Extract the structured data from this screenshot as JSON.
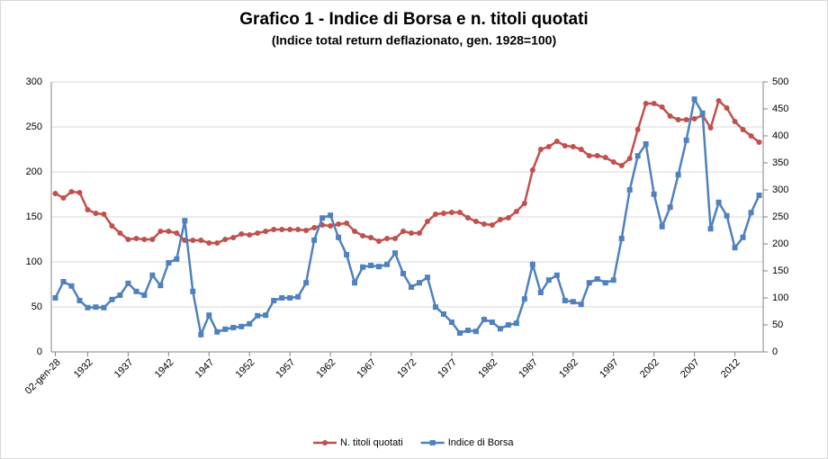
{
  "chart_data": {
    "type": "line",
    "title": "Grafico 1 - Indice di Borsa e n. titoli quotati",
    "subtitle": "(Indice total return deflazionato, gen. 1928=100)",
    "categories": [
      "02-gen-28",
      null,
      null,
      null,
      "1932",
      null,
      null,
      null,
      null,
      "1937",
      null,
      null,
      null,
      null,
      "1942",
      null,
      null,
      null,
      null,
      "1947",
      null,
      null,
      null,
      null,
      "1952",
      null,
      null,
      null,
      null,
      "1957",
      null,
      null,
      null,
      null,
      "1962",
      null,
      null,
      null,
      null,
      "1967",
      null,
      null,
      null,
      null,
      "1972",
      null,
      null,
      null,
      null,
      "1977",
      null,
      null,
      null,
      null,
      "1982",
      null,
      null,
      null,
      null,
      "1987",
      null,
      null,
      null,
      null,
      "1992",
      null,
      null,
      null,
      null,
      "1997",
      null,
      null,
      null,
      null,
      "2002",
      null,
      null,
      null,
      null,
      "2007",
      null,
      null,
      null,
      null,
      "2012",
      null,
      null,
      null
    ],
    "series": [
      {
        "name": "N. titoli quotati",
        "color": "#c0504d",
        "marker": "circle",
        "values": [
          176,
          171,
          178,
          177,
          158,
          154,
          153,
          140,
          132,
          125,
          126,
          125,
          125,
          134,
          134,
          132,
          124,
          124,
          124,
          121,
          121,
          125,
          127,
          131,
          130,
          132,
          134,
          136,
          136,
          136,
          136,
          135,
          138,
          141,
          140,
          142,
          143,
          134,
          129,
          127,
          123,
          126,
          126,
          134,
          132,
          132,
          145,
          153,
          154,
          155,
          155,
          149,
          145,
          142,
          141,
          147,
          149,
          156,
          165,
          202,
          225,
          228,
          234,
          229,
          228,
          225,
          218,
          218,
          216,
          211,
          207,
          215,
          247,
          276,
          276,
          272,
          262,
          258,
          258,
          259,
          263,
          249,
          279,
          271,
          256,
          247,
          240,
          233
        ]
      },
      {
        "name": "Indice di Borsa",
        "color": "#4f81bd",
        "marker": "square",
        "axis": "y2",
        "values": [
          100,
          130,
          122,
          95,
          82,
          83,
          82,
          97,
          105,
          127,
          112,
          105,
          142,
          123,
          165,
          172,
          243,
          112,
          32,
          68,
          37,
          42,
          45,
          47,
          52,
          67,
          68,
          95,
          100,
          100,
          102,
          128,
          207,
          248,
          253,
          212,
          180,
          128,
          157,
          160,
          158,
          162,
          183,
          145,
          120,
          128,
          138,
          83,
          70,
          55,
          35,
          40,
          38,
          60,
          55,
          43,
          50,
          53,
          98,
          162,
          110,
          133,
          142,
          95,
          93,
          88,
          128,
          135,
          128,
          133,
          210,
          300,
          363,
          385,
          292,
          232,
          268,
          328,
          392,
          468,
          442,
          228,
          277,
          252,
          193,
          212,
          258,
          290
        ]
      }
    ],
    "ylim": [
      0,
      300
    ],
    "yticks": [
      0,
      50,
      100,
      150,
      200,
      250,
      300
    ],
    "y2lim": [
      0,
      500
    ],
    "y2ticks": [
      0,
      50,
      100,
      150,
      200,
      250,
      300,
      350,
      400,
      450,
      500
    ],
    "grid": true,
    "legend": "bottom"
  }
}
